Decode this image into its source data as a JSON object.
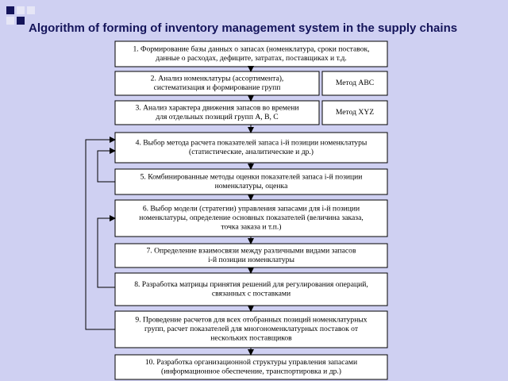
{
  "header": {
    "title": "Algorithm of forming of inventory management system in the supply chains"
  },
  "nodes": [
    {
      "lines": [
        "1. Формирование базы данных о запасах (номенклатура, сроки поставок,",
        "данные о расходах, дефиците, затратах, поставщиках и т.д."
      ]
    },
    {
      "lines": [
        "2. Анализ номенклатуры (ассортимента),",
        "систематизация и формирование групп"
      ],
      "method": "Метод ABC"
    },
    {
      "lines": [
        "3. Анализ характера движения запасов во времени",
        "для отдельных позиций групп А, В, С"
      ],
      "method": "Метод XYZ"
    },
    {
      "lines": [
        "4. Выбор метода расчета показателей запаса i-й позиции номенклатуры",
        "(статистические, аналитические и др.)"
      ]
    },
    {
      "lines": [
        "5. Комбинированные методы оценки показателей запаса i-й позиции",
        "номенклатуры, оценка"
      ]
    },
    {
      "lines": [
        "6. Выбор модели (стратегии) управления запасами для i-й позиции",
        "номенклатуры, определение основных показателей (величина заказа,",
        "точка заказа и т.п.)"
      ]
    },
    {
      "lines": [
        "7. Определение взаимосвязи между различными видами запасов",
        "i-й позиции номенклатуры"
      ]
    },
    {
      "lines": [
        "8. Разработка матрицы принятия решений для регулирования операций,",
        "связанных с поставками"
      ]
    },
    {
      "lines": [
        "9. Проведение расчетов для всех отобранных позиций номенклатурных",
        "групп, расчет показателей для многономенклатурных поставок от",
        "нескольких поставщиков"
      ]
    },
    {
      "lines": [
        "10. Разработка организационной структуры управления запасами",
        "(информационное обеспечение, транспортировка и др.)"
      ]
    }
  ]
}
